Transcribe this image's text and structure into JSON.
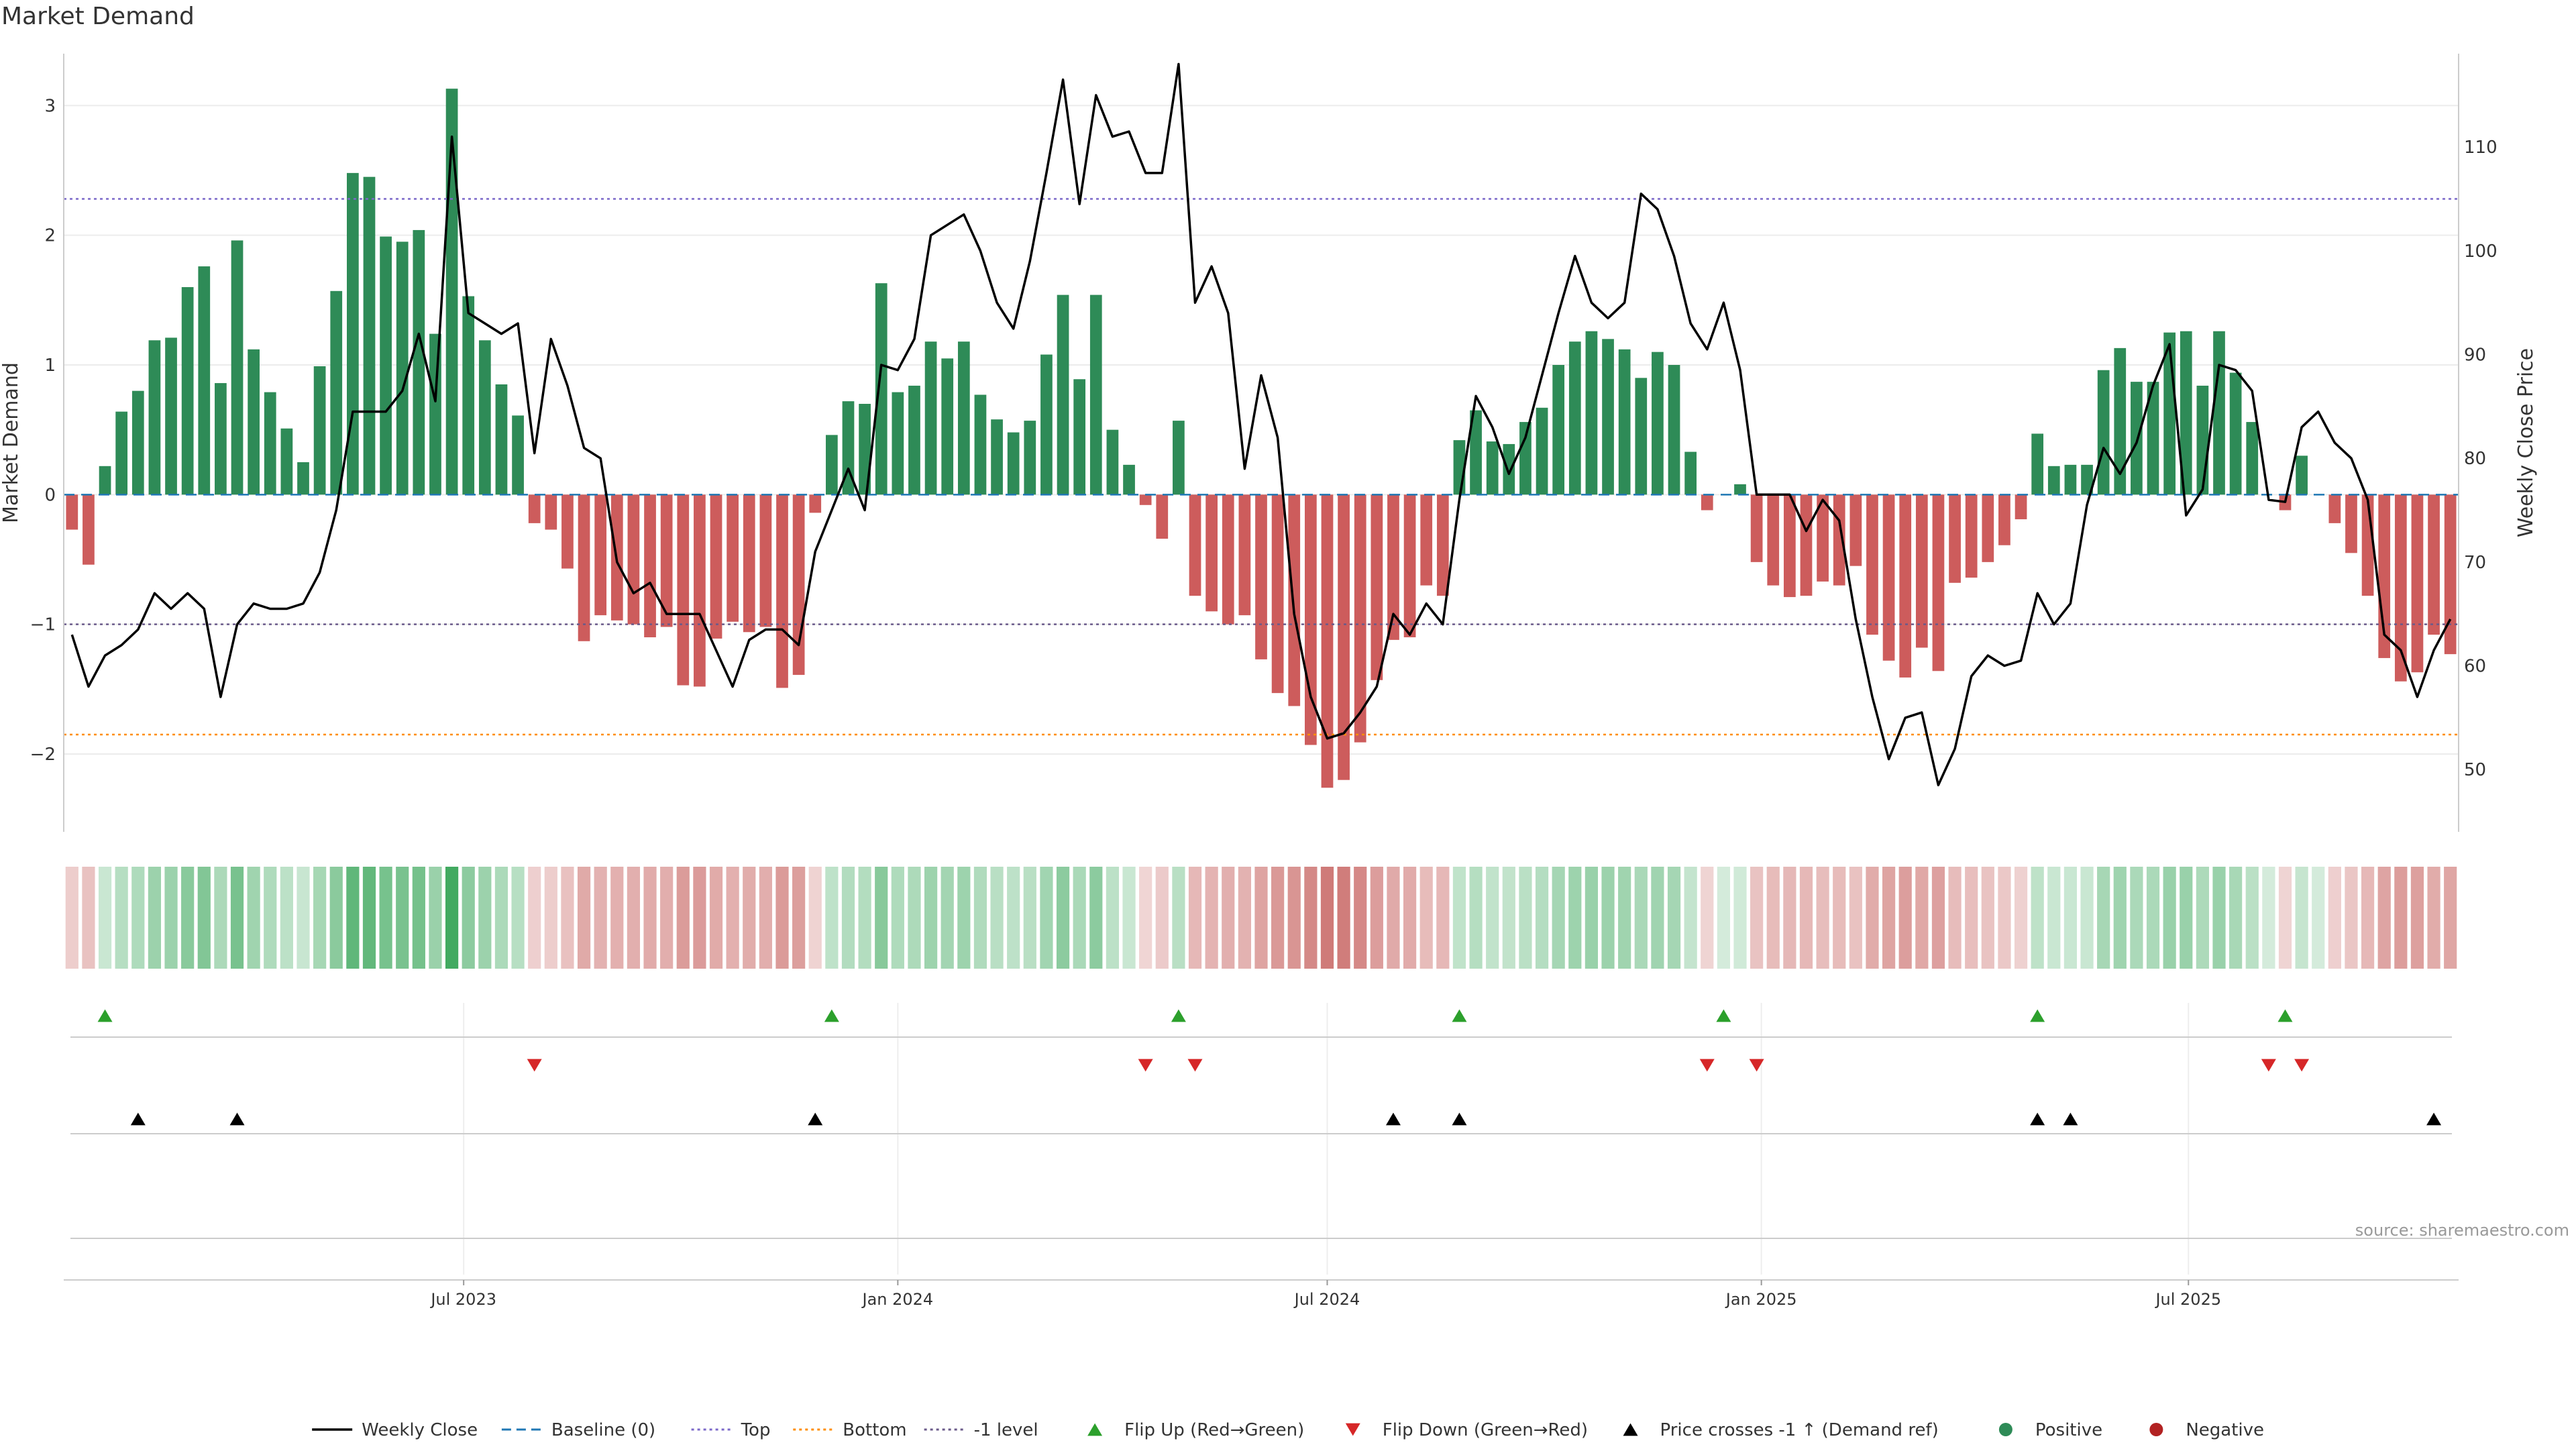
{
  "title": "Market Demand",
  "source": "source: sharemaestro.com",
  "colors": {
    "positive": "#2e8b57",
    "negative": "#cd5c5c",
    "price": "#000000",
    "top": "#7b68c9",
    "bottom": "#ff8c00",
    "minus1": "#6a5a8a",
    "baseline": "#1f77b4",
    "flip_up": "#2ca02c",
    "flip_down": "#d62728"
  },
  "chart_data": {
    "type": "bar",
    "title": "Market Demand",
    "ylabel": "Market Demand",
    "y2label": "Weekly Close Price",
    "ylim": [
      -2.6,
      3.4
    ],
    "y2lim": [
      44,
      119
    ],
    "yticks": [
      3,
      2,
      1,
      0,
      -1,
      -2
    ],
    "ytick_labels": [
      "3",
      "2",
      "1",
      "0",
      "−1",
      "−2"
    ],
    "y2ticks": [
      110,
      100,
      90,
      80,
      70,
      60,
      50
    ],
    "x_start": "2023-01-16",
    "x_step_days": 7,
    "x_ticks": [
      {
        "date": "2023-07-01",
        "label": "Jul 2023"
      },
      {
        "date": "2024-01-01",
        "label": "Jan 2024"
      },
      {
        "date": "2024-07-01",
        "label": "Jul 2024"
      },
      {
        "date": "2025-01-01",
        "label": "Jan 2025"
      },
      {
        "date": "2025-07-01",
        "label": "Jul 2025"
      }
    ],
    "reference_lines": {
      "top": 2.28,
      "bottom": -1.85,
      "minus1": -1.0,
      "baseline": 0
    },
    "demand": [
      -0.27,
      -0.54,
      0.22,
      0.64,
      0.8,
      1.19,
      1.21,
      1.6,
      1.76,
      0.86,
      1.96,
      1.12,
      0.79,
      0.51,
      0.25,
      0.99,
      1.57,
      2.48,
      2.45,
      1.99,
      1.95,
      2.04,
      1.24,
      3.13,
      1.53,
      1.19,
      0.85,
      0.61,
      -0.22,
      -0.27,
      -0.57,
      -1.13,
      -0.93,
      -0.97,
      -1.0,
      -1.1,
      -1.02,
      -1.47,
      -1.48,
      -1.11,
      -0.98,
      -1.06,
      -1.02,
      -1.49,
      -1.39,
      -0.14,
      0.46,
      0.72,
      0.7,
      1.63,
      0.79,
      0.84,
      1.18,
      1.05,
      1.18,
      0.77,
      0.58,
      0.48,
      0.57,
      1.08,
      1.54,
      0.89,
      1.54,
      0.5,
      0.23,
      -0.08,
      -0.34,
      0.57,
      -0.78,
      -0.9,
      -1.0,
      -0.93,
      -1.27,
      -1.53,
      -1.63,
      -1.93,
      -2.26,
      -2.2,
      -1.91,
      -1.43,
      -1.12,
      -1.1,
      -0.7,
      -0.78,
      0.42,
      0.65,
      0.41,
      0.39,
      0.56,
      0.67,
      1.0,
      1.18,
      1.26,
      1.2,
      1.12,
      0.9,
      1.1,
      1.0,
      0.33,
      -0.12,
      0.0,
      0.08,
      -0.52,
      -0.7,
      -0.79,
      -0.78,
      -0.67,
      -0.7,
      -0.55,
      -1.08,
      -1.28,
      -1.41,
      -1.18,
      -1.36,
      -0.68,
      -0.64,
      -0.52,
      -0.39,
      -0.19,
      0.47,
      0.22,
      0.23,
      0.23,
      0.96,
      1.13,
      0.87,
      0.87,
      1.25,
      1.26,
      0.84,
      1.26,
      0.94,
      0.56,
      0.0,
      -0.12,
      0.3,
      0.0,
      -0.22,
      -0.45,
      -0.78,
      -1.26,
      -1.44,
      -1.37,
      -1.08,
      -1.23
    ],
    "price": [
      63,
      58,
      61,
      62,
      63.5,
      67,
      65.5,
      67,
      65.5,
      57,
      64,
      66,
      65.5,
      65.5,
      66,
      69,
      75,
      84.5,
      84.5,
      84.5,
      86.5,
      92,
      85.5,
      111,
      94,
      93,
      92,
      93,
      80.5,
      91.5,
      87,
      81,
      80,
      70,
      67,
      68,
      65,
      65,
      65,
      61.5,
      58,
      62.5,
      63.5,
      63.5,
      62,
      71,
      75,
      79,
      75,
      89,
      88.5,
      91.5,
      101.5,
      102.5,
      103.5,
      100,
      95,
      92.5,
      99,
      107.5,
      116.5,
      104.5,
      115,
      111,
      111.5,
      107.5,
      107.5,
      118,
      95,
      98.5,
      94,
      79,
      88,
      82,
      65,
      57,
      53,
      53.5,
      55.5,
      58,
      65,
      63,
      66,
      64,
      76,
      86,
      83,
      78.5,
      82,
      88,
      94,
      99.5,
      95,
      93.5,
      95,
      105.5,
      104,
      99.5,
      93,
      90.5,
      95,
      88.5,
      76.5,
      76.5,
      76.5,
      73,
      76,
      74,
      64.5,
      57,
      51,
      55,
      55.5,
      48.5,
      52,
      59,
      61,
      60,
      60.5,
      67,
      64,
      66,
      75.5,
      81,
      78.5,
      81.5,
      87,
      91,
      74.5,
      77,
      89,
      88.5,
      86.5,
      76,
      75.8,
      83,
      84.5,
      81.5,
      80,
      76,
      63,
      61.5,
      57,
      61.5,
      64.5
    ],
    "flip_up": [
      2,
      46,
      67,
      84,
      100,
      119,
      134
    ],
    "flip_down": [
      28,
      65,
      68,
      99,
      102,
      133,
      135
    ],
    "price_cross": [
      4,
      10,
      45,
      80,
      84,
      119,
      121,
      143
    ]
  },
  "legend": [
    {
      "label": "Weekly Close",
      "kind": "line",
      "color": "#000000"
    },
    {
      "label": "Baseline (0)",
      "kind": "dashed",
      "color": "#1f77b4"
    },
    {
      "label": "Top",
      "kind": "dotted",
      "color": "#7b68c9"
    },
    {
      "label": "Bottom",
      "kind": "dotted",
      "color": "#ff8c00"
    },
    {
      "label": "-1 level",
      "kind": "dotted",
      "color": "#6a5a8a"
    },
    {
      "label": "Flip Up (Red→Green)",
      "kind": "tri-up",
      "color": "#2ca02c"
    },
    {
      "label": "Flip Down (Green→Red)",
      "kind": "tri-down",
      "color": "#d62728"
    },
    {
      "label": "Price crosses -1 ↑ (Demand ref)",
      "kind": "tri-up",
      "color": "#000000"
    },
    {
      "label": "Positive",
      "kind": "dot",
      "color": "#2e8b57"
    },
    {
      "label": "Negative",
      "kind": "dot",
      "color": "#b22222"
    }
  ]
}
